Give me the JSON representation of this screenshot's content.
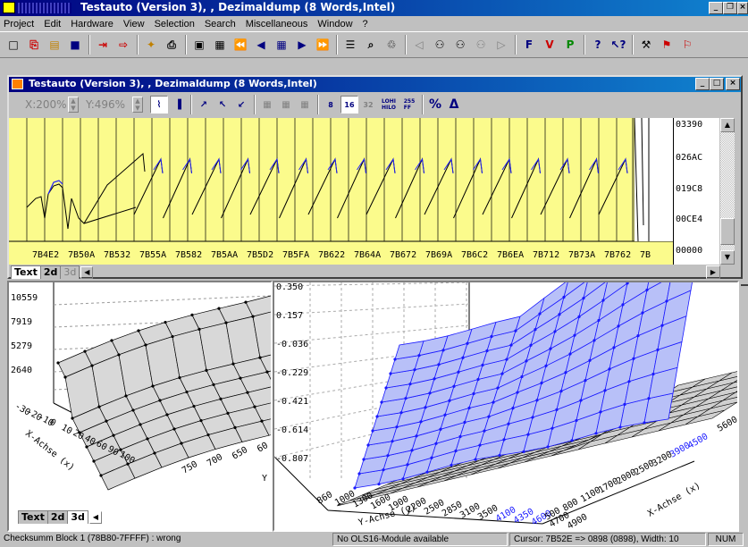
{
  "app": {
    "title": "Testauto (Version 3), , Dezimaldump (8 Words,Intel)"
  },
  "menu": [
    "Project",
    "Edit",
    "Hardware",
    "View",
    "Selection",
    "Search",
    "Miscellaneous",
    "Window",
    "?"
  ],
  "child": {
    "title": "Testauto (Version 3), , Dezimaldump (8 Words,Intel)",
    "zoom_x": "X:200%",
    "zoom_y": "Y:496%",
    "lohi": "LOHI\nHILO",
    "hex_label": "255\nFF"
  },
  "chart2d": {
    "x_labels": [
      "7B4E2",
      "7B50A",
      "7B532",
      "7B55A",
      "7B582",
      "7B5AA",
      "7B5D2",
      "7B5FA",
      "7B622",
      "7B64A",
      "7B672",
      "7B69A",
      "7B6C2",
      "7B6EA",
      "7B712",
      "7B73A",
      "7B762",
      "7B"
    ],
    "y_labels": [
      "03390",
      "026AC",
      "019C8",
      "00CE4",
      "00000"
    ],
    "tabs": [
      "Text",
      "2d",
      "3d"
    ]
  },
  "chart3d_small": {
    "z_ticks": [
      "10559",
      "7919",
      "5279",
      "2640"
    ],
    "x_ticks": [
      "-30",
      "-20",
      "-10",
      "0",
      "10",
      "20",
      "40",
      "60",
      "90",
      "100"
    ],
    "x_axis_label": "X-Achse (x)",
    "y_ticks": [
      "750",
      "700",
      "650",
      "60"
    ],
    "y_axis_label": "Y",
    "tabs": [
      "Text",
      "2d",
      "3d"
    ]
  },
  "chart3d_large": {
    "z_ticks": [
      "0.350",
      "0.157",
      "-0.036",
      "-0.229",
      "-0.421",
      "-0.614",
      "-0.807"
    ],
    "y_ticks_black": [
      "860",
      "1000",
      "1300",
      "1600",
      "1900",
      "2200",
      "2500",
      "2850",
      "3100",
      "3500"
    ],
    "y_ticks_blue": [
      "4100",
      "4350",
      "4600"
    ],
    "y_ticks_tail": [
      "4700",
      "4900"
    ],
    "y_axis_label": "Y-Achse (y)",
    "x_ticks_black": [
      "500",
      "800",
      "1100",
      "1700",
      "2000",
      "2500",
      "3200"
    ],
    "x_ticks_blue": [
      "3900",
      "4500"
    ],
    "x_ticks_tail": [
      "5600"
    ],
    "x_axis_label": "X-Achse (x)"
  },
  "status": {
    "checksum": "Checksumm Block 1 (78B80-7FFFF) : wrong",
    "module": "No OLS16-Module available",
    "cursor": "Cursor: 7B52E => 0898 (0898), Width: 10",
    "num": "NUM"
  },
  "colors": {
    "title_start": "#000080",
    "title_end": "#1084d0",
    "chart_bg": "#fbfb8c",
    "blue_mesh": "#1a1aff"
  }
}
